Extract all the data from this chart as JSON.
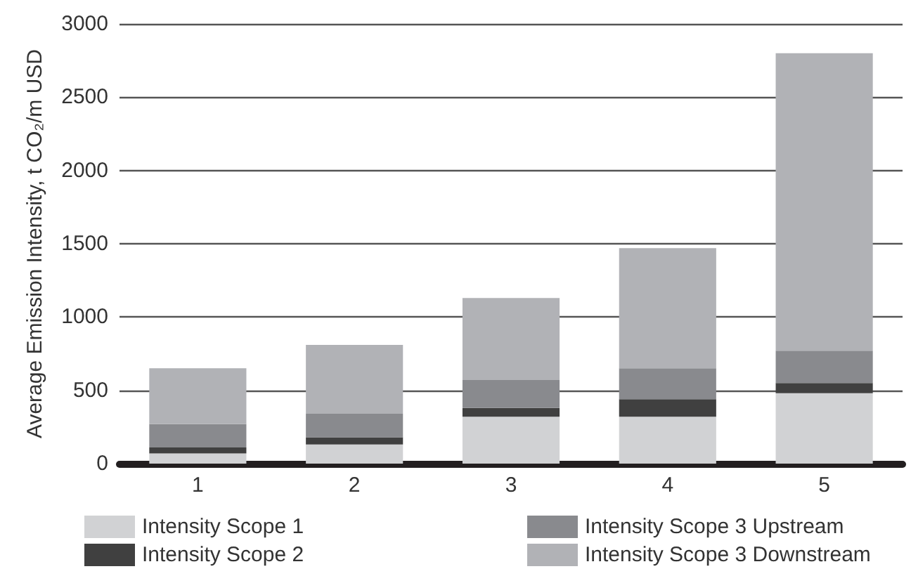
{
  "chart_data": {
    "type": "bar",
    "stacked": true,
    "ylabel": "Average Emission Intensity, t CO₂/m USD",
    "categories": [
      "1",
      "2",
      "3",
      "4",
      "5"
    ],
    "series": [
      {
        "name": "Intensity Scope 1",
        "color": "#d1d2d4",
        "values": [
          70,
          130,
          320,
          320,
          480
        ]
      },
      {
        "name": "Intensity Scope 2",
        "color": "#404040",
        "values": [
          40,
          50,
          60,
          120,
          70
        ]
      },
      {
        "name": "Intensity Scope 3 Upstream",
        "color": "#898a8e",
        "values": [
          160,
          160,
          190,
          210,
          220
        ]
      },
      {
        "name": "Intensity Scope 3 Downstream",
        "color": "#b1b2b6",
        "values": [
          380,
          470,
          560,
          820,
          2030
        ]
      }
    ],
    "ylim": [
      0,
      3000
    ],
    "yticks": [
      0,
      500,
      1000,
      1500,
      2000,
      2500,
      3000
    ],
    "grid": "y",
    "legend": "bottom"
  }
}
